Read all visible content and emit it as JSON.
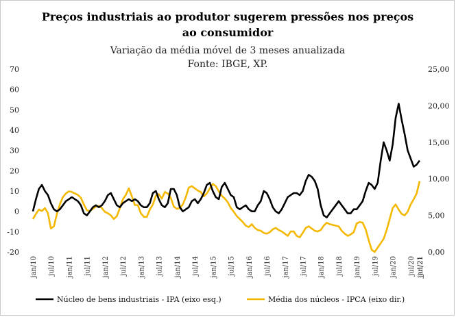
{
  "chart_data": {
    "type": "line",
    "title_line1": "Preços industriais ao produtor sugerem pressões nos preços",
    "title_line2": "ao consumidor",
    "subtitle": "Variação da média móvel de 3 meses anualizada",
    "source": "Fonte: IBGE, XP.",
    "y_left": {
      "ticks": [
        "70",
        "60",
        "50",
        "40",
        "30",
        "20",
        "10",
        "0",
        "-10",
        "-20"
      ],
      "min": -20,
      "max": 70
    },
    "y_right": {
      "ticks": [
        "25,00",
        "20,00",
        "15,00",
        "10,00",
        "5,00",
        "0,00"
      ],
      "min": 0,
      "max": 25
    },
    "x_labels": [
      "jan/10",
      "jul/10",
      "jan/11",
      "jul/11",
      "jan/12",
      "jul/12",
      "jan/13",
      "jul/13",
      "jan/14",
      "jul/14",
      "jan/15",
      "jul/15",
      "jan/16",
      "jul/16",
      "jan/17",
      "jul/17",
      "jan/18",
      "jul/18",
      "jan/19",
      "jul/19",
      "jan/20",
      "jul/20",
      "jan/21",
      "jul/21"
    ],
    "start": "2010-01",
    "series": [
      {
        "name": "Núcleo de bens industriais - IPA (eixo esq.)",
        "axis": "left",
        "color": "#000000",
        "values": [
          0,
          6,
          11,
          13,
          10,
          8,
          4,
          1,
          0,
          1,
          3,
          5,
          6,
          7,
          6,
          5,
          3,
          -1,
          -2,
          0,
          2,
          3,
          2,
          3,
          5,
          8,
          9,
          6,
          3,
          2,
          4,
          5,
          6,
          5,
          6,
          5,
          3,
          2,
          2,
          4,
          9,
          10,
          6,
          3,
          2,
          4,
          11,
          11,
          8,
          2,
          0,
          1,
          2,
          5,
          6,
          4,
          6,
          9,
          13,
          14,
          10,
          7,
          6,
          12,
          14,
          11,
          8,
          7,
          2,
          1,
          2,
          3,
          1,
          0,
          0,
          3,
          5,
          10,
          9,
          6,
          2,
          0,
          -1,
          1,
          4,
          7,
          8,
          9,
          9,
          8,
          10,
          15,
          18,
          17,
          15,
          11,
          3,
          -2,
          -3,
          -1,
          1,
          3,
          5,
          3,
          1,
          -1,
          -1,
          1,
          1,
          3,
          5,
          10,
          14,
          13,
          11,
          14,
          25,
          34,
          30,
          25,
          33,
          46,
          53,
          45,
          38,
          30,
          26,
          22,
          23,
          25
        ]
      },
      {
        "name": "Média dos núcleos - IPCA (eixo dir.)",
        "axis": "right",
        "color": "#F5B800",
        "values": [
          4.5,
          5.2,
          5.8,
          5.6,
          6.0,
          5.3,
          3.2,
          3.5,
          5.2,
          6.5,
          7.5,
          8.0,
          8.3,
          8.2,
          8.0,
          7.8,
          7.4,
          6.5,
          5.7,
          5.6,
          5.9,
          6.2,
          6.3,
          6.0,
          5.5,
          5.3,
          5.0,
          4.5,
          4.9,
          6.0,
          7.2,
          7.8,
          8.7,
          7.6,
          6.4,
          6.4,
          5.3,
          4.8,
          4.8,
          5.8,
          6.5,
          7.7,
          7.9,
          7.3,
          8.2,
          8.0,
          7.4,
          6.2,
          5.9,
          6.0,
          6.5,
          7.5,
          8.8,
          9.0,
          8.7,
          8.4,
          8.2,
          7.6,
          8.0,
          8.7,
          9.3,
          9.0,
          8.3,
          7.7,
          7.3,
          6.8,
          6.0,
          5.5,
          4.9,
          4.5,
          4.1,
          3.6,
          3.4,
          3.8,
          3.3,
          3.0,
          2.9,
          2.6,
          2.5,
          2.7,
          3.1,
          3.3,
          3.0,
          2.8,
          2.5,
          2.2,
          2.8,
          2.8,
          2.2,
          2.0,
          2.6,
          3.3,
          3.5,
          3.2,
          2.9,
          2.8,
          3.0,
          3.6,
          4.0,
          3.8,
          3.7,
          3.6,
          3.5,
          2.9,
          2.5,
          2.2,
          2.4,
          2.7,
          3.9,
          4.1,
          4.0,
          3.1,
          1.6,
          0.3,
          0.0,
          0.6,
          1.2,
          1.8,
          3.0,
          4.5,
          6.0,
          6.5,
          5.8,
          5.2,
          5.0,
          5.5,
          6.5,
          7.2,
          8.0,
          9.7
        ]
      }
    ]
  }
}
